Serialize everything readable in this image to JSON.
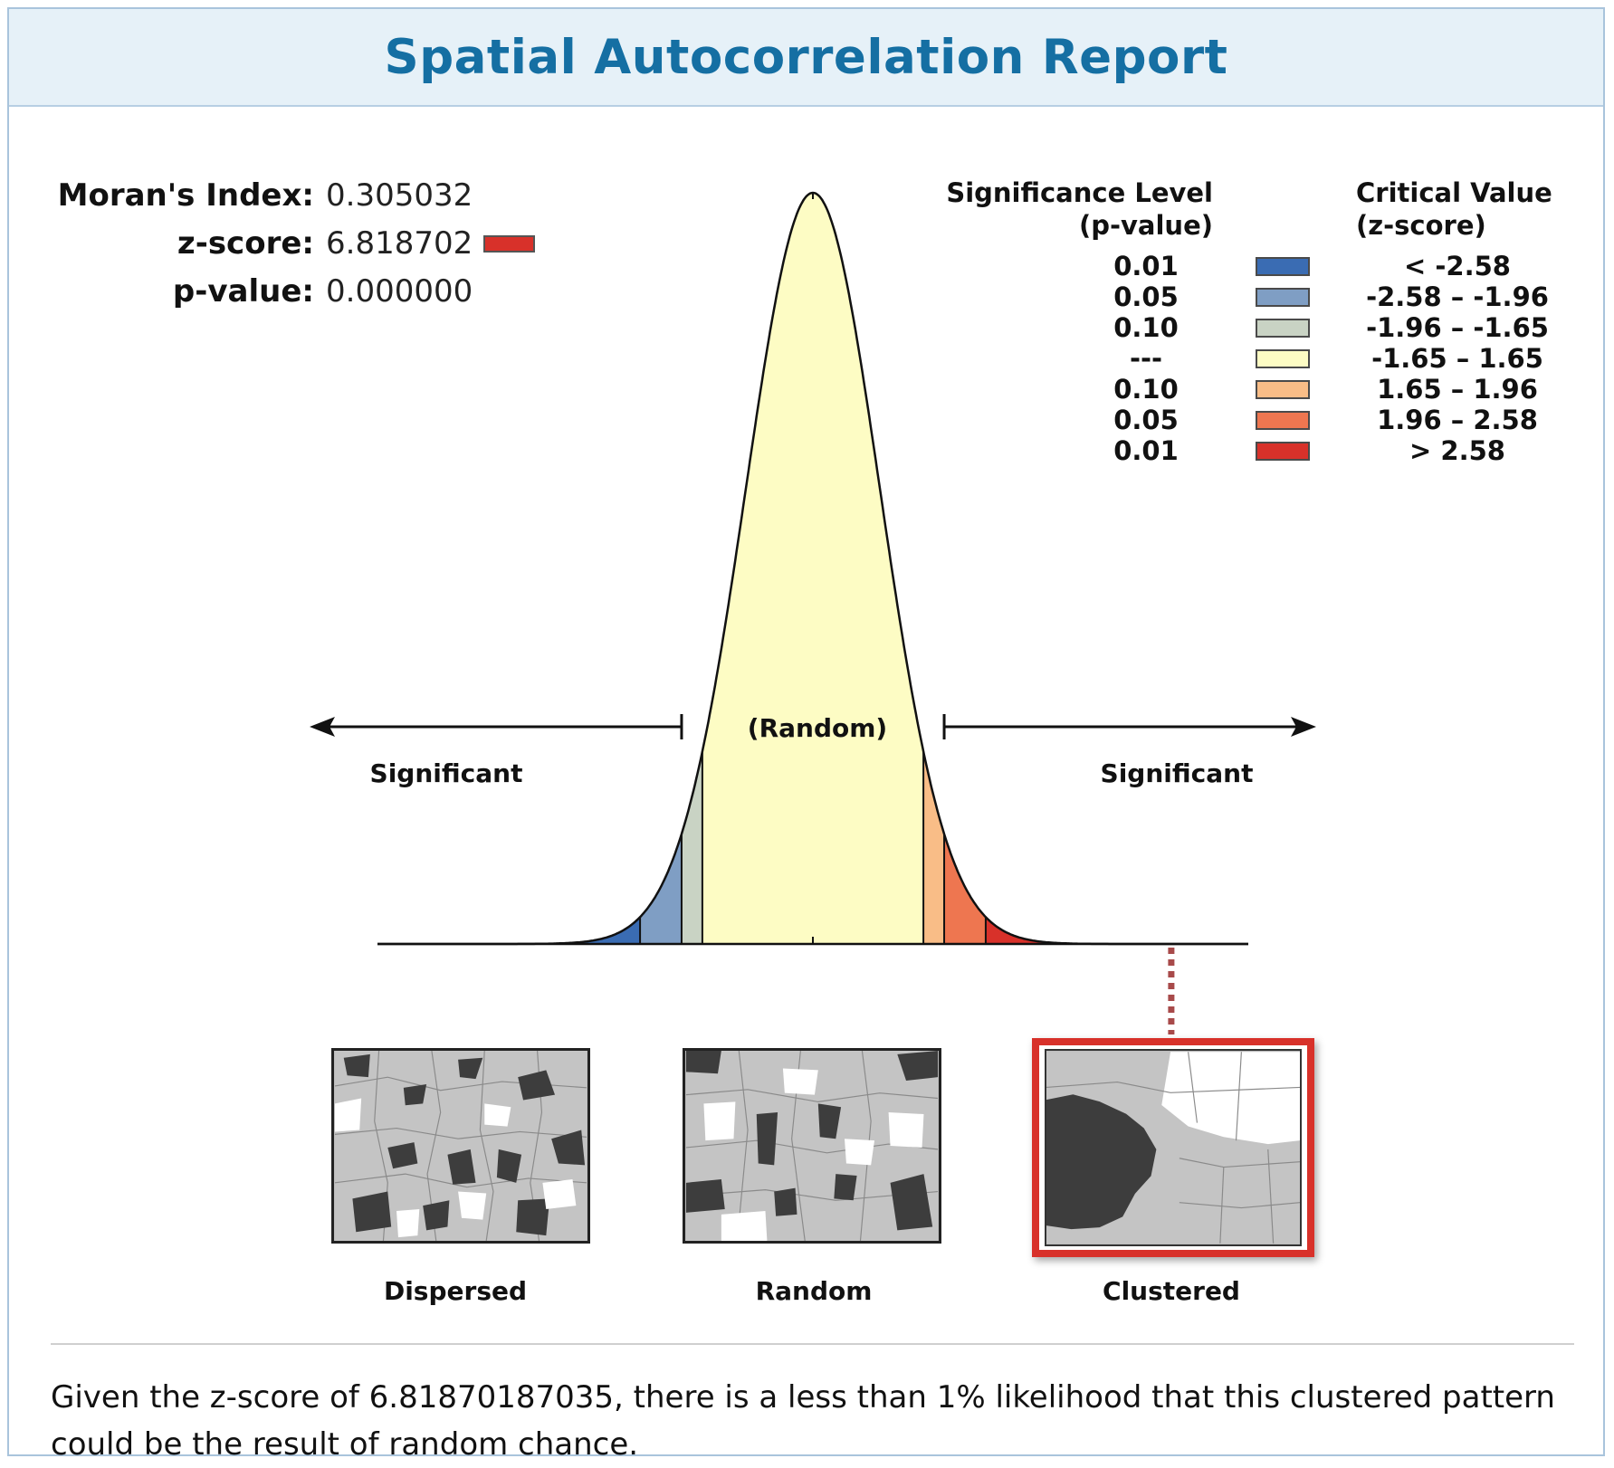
{
  "report": {
    "title": "Spatial Autocorrelation Report"
  },
  "stats": {
    "morans_label": "Moran's Index:",
    "morans_value": "0.305032",
    "z_label": "z-score:",
    "z_value": "6.818702",
    "p_label": "p-value:",
    "p_value": "0.000000",
    "z_swatch_color": "#d8312a"
  },
  "legend": {
    "sig_header_line1": "Significance Level",
    "sig_header_line2": "(p-value)",
    "crit_header_line1": "Critical Value",
    "crit_header_line2": "(z-score)",
    "rows": [
      {
        "p": "0.01",
        "z": "< -2.58",
        "color": "#3a6cb3"
      },
      {
        "p": "0.05",
        "z": "-2.58 – -1.96",
        "color": "#7f9ec4"
      },
      {
        "p": "0.10",
        "z": "-1.96 – -1.65",
        "color": "#c9d3c4"
      },
      {
        "p": "---",
        "z": "-1.65 – 1.65",
        "color": "#fdfcc4"
      },
      {
        "p": "0.10",
        "z": "1.65 – 1.96",
        "color": "#f9bd87"
      },
      {
        "p": "0.05",
        "z": "1.96 – 2.58",
        "color": "#ee7650"
      },
      {
        "p": "0.01",
        "z": "> 2.58",
        "color": "#d8312a"
      }
    ]
  },
  "chart": {
    "center_label": "(Random)",
    "left_label": "Significant",
    "right_label": "Significant",
    "observed_z": 6.818702
  },
  "patterns": {
    "dispersed": "Dispersed",
    "random": "Random",
    "clustered": "Clustered",
    "selected": "clustered"
  },
  "conclusion": {
    "text": "Given the z-score of 6.81870187035, there is a less than 1% likelihood that this clustered pattern could be the result of random chance."
  }
}
